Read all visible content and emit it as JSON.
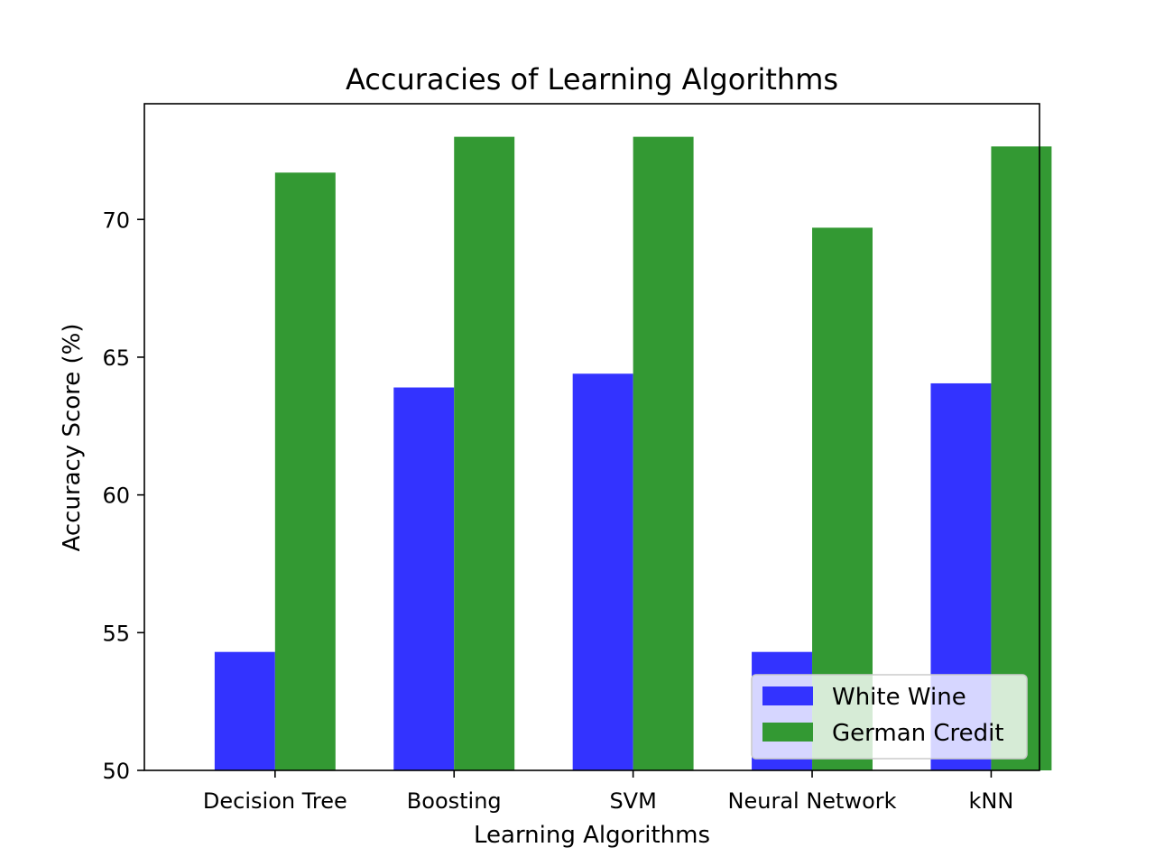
{
  "chart_data": {
    "type": "bar",
    "title": "Accuracies of Learning Algorithms",
    "xlabel": "Learning Algorithms",
    "ylabel": "Accuracy Score (%)",
    "categories": [
      "Decision Tree",
      "Boosting",
      "SVM",
      "Neural Network",
      "kNN"
    ],
    "series": [
      {
        "name": "White Wine",
        "color": "#3333ff",
        "values": [
          54.3,
          63.9,
          64.4,
          54.3,
          64.05
        ]
      },
      {
        "name": "German Credit",
        "color": "#339933",
        "values": [
          71.7,
          73.0,
          73.0,
          69.7,
          72.65
        ]
      }
    ],
    "ylim": [
      50,
      74.2
    ],
    "yticks": [
      50,
      55,
      60,
      65,
      70
    ],
    "grid": false,
    "legend_position": "lower-right"
  }
}
